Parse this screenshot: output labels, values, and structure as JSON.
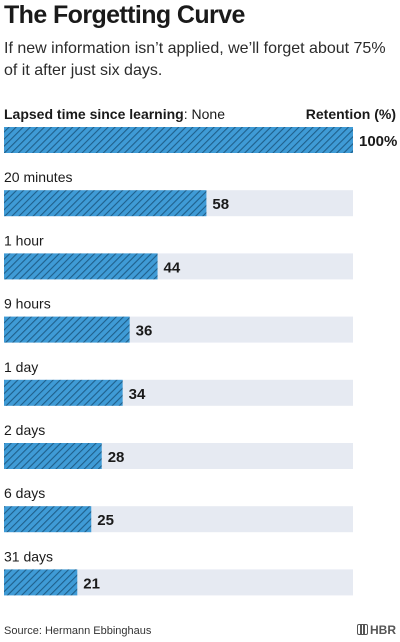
{
  "title": "The Forgetting Curve",
  "subtitle": "If new information isn’t applied, we’ll forget about 75% of it after just six days.",
  "source": "Source: Hermann Ebbinghaus",
  "logo_text": "HBR",
  "colors": {
    "bar": "#3f9bd6",
    "bar_stripe": "#1f5f8a",
    "track": "#e6eaf2",
    "text": "#1a1a1a"
  },
  "chart_data": {
    "type": "bar",
    "orientation": "horizontal",
    "category_axis_label": "Lapsed time since learning",
    "value_axis_label": "Retention (%)",
    "categories": [
      "None",
      "20 minutes",
      "1 hour",
      "9 hours",
      "1 day",
      "2 days",
      "6 days",
      "31 days"
    ],
    "values": [
      100,
      58,
      44,
      36,
      34,
      28,
      25,
      21
    ],
    "value_labels": [
      "100%",
      "58",
      "44",
      "36",
      "34",
      "28",
      "25",
      "21"
    ],
    "xlim": [
      0,
      100
    ]
  }
}
